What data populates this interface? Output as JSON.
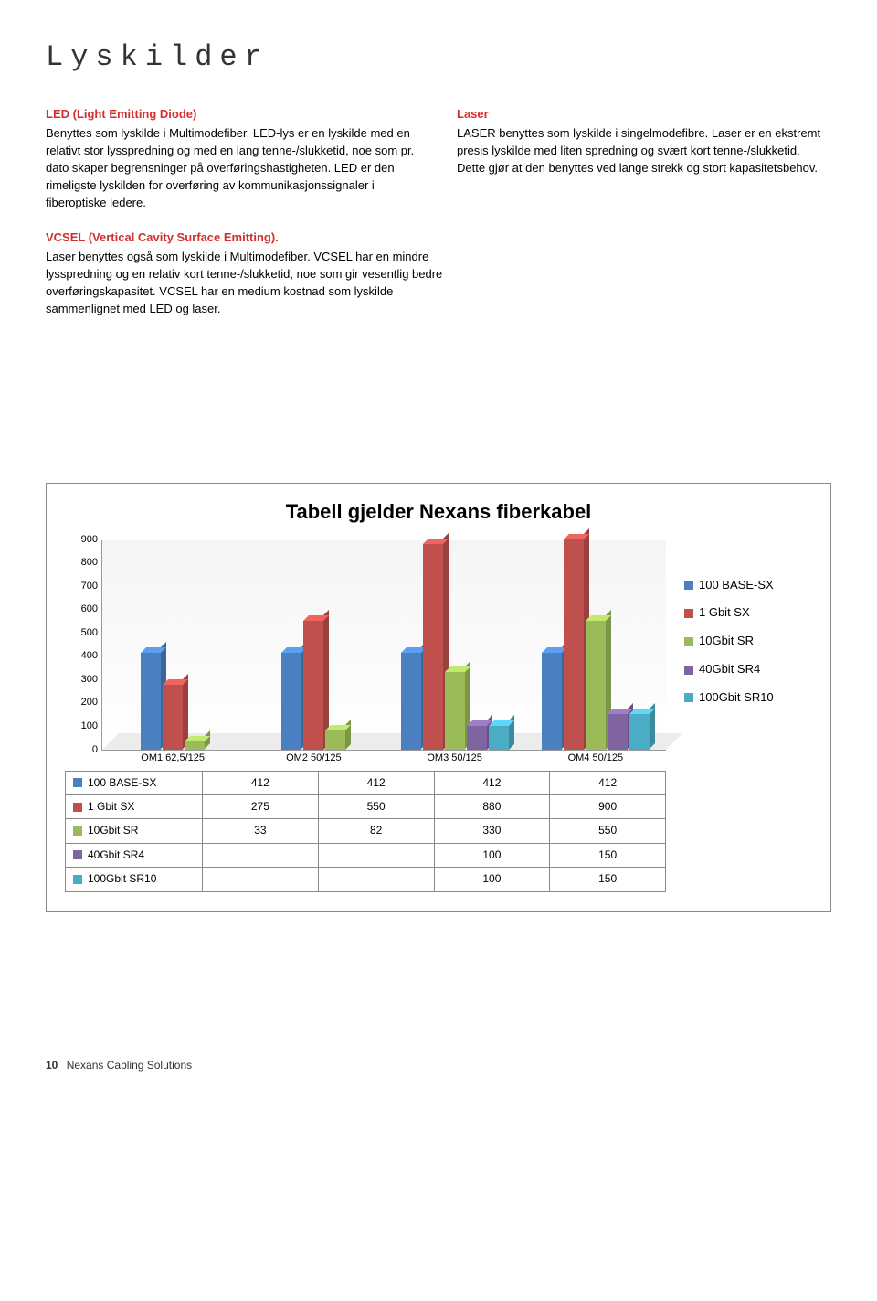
{
  "page": {
    "title": "Lyskilder",
    "footer_page": "10",
    "footer_text": "Nexans Cabling Solutions"
  },
  "sections": {
    "led": {
      "heading": "LED (Light Emitting Diode)",
      "body": "Benyttes som lyskilde i Multimodefiber. LED-lys er en lyskilde med en relativt stor lysspredning og med en lang tenne-/slukketid, noe som pr. dato skaper begrensninger på overføringshastigheten. LED er den rimeligste lyskilden for overføring av kommunikasjonssignaler i fiberoptiske ledere."
    },
    "laser": {
      "heading": "Laser",
      "body": "LASER benyttes som lyskilde i singelmodefibre. Laser er en ekstremt presis lyskilde med liten spredning og svært kort tenne-/slukketid. Dette gjør at den benyttes ved lange strekk og stort kapasitetsbehov."
    },
    "vcsel": {
      "heading": "VCSEL (Vertical Cavity Surface Emitting).",
      "body": "Laser benyttes også som lyskilde i Multimodefiber. VCSEL har en mindre lysspredning og en relativ kort tenne-/slukketid, noe som gir vesentlig bedre overføringskapasitet. VCSEL har en medium kostnad som lyskilde sammenlignet med LED og laser."
    }
  },
  "chart": {
    "title": "Tabell gjelder Nexans fiberkabel",
    "ylim_max": 900,
    "y_ticks": [
      "900",
      "800",
      "700",
      "600",
      "500",
      "400",
      "300",
      "200",
      "100",
      "0"
    ],
    "categories": [
      "OM1 62,5/125",
      "OM2 50/125",
      "OM3 50/125",
      "OM4 50/125"
    ],
    "series": [
      {
        "name": "100 BASE-SX",
        "color": "#4a7fc1",
        "values": [
          412,
          412,
          412,
          412
        ]
      },
      {
        "name": "1 Gbit SX",
        "color": "#c0504d",
        "values": [
          275,
          550,
          880,
          900
        ]
      },
      {
        "name": "10Gbit SR",
        "color": "#9bbb59",
        "values": [
          33,
          82,
          330,
          550
        ]
      },
      {
        "name": "40Gbit SR4",
        "color": "#8064a2",
        "values": [
          null,
          null,
          100,
          150
        ]
      },
      {
        "name": "100Gbit SR10",
        "color": "#4bacc6",
        "values": [
          null,
          null,
          100,
          150
        ]
      }
    ]
  }
}
